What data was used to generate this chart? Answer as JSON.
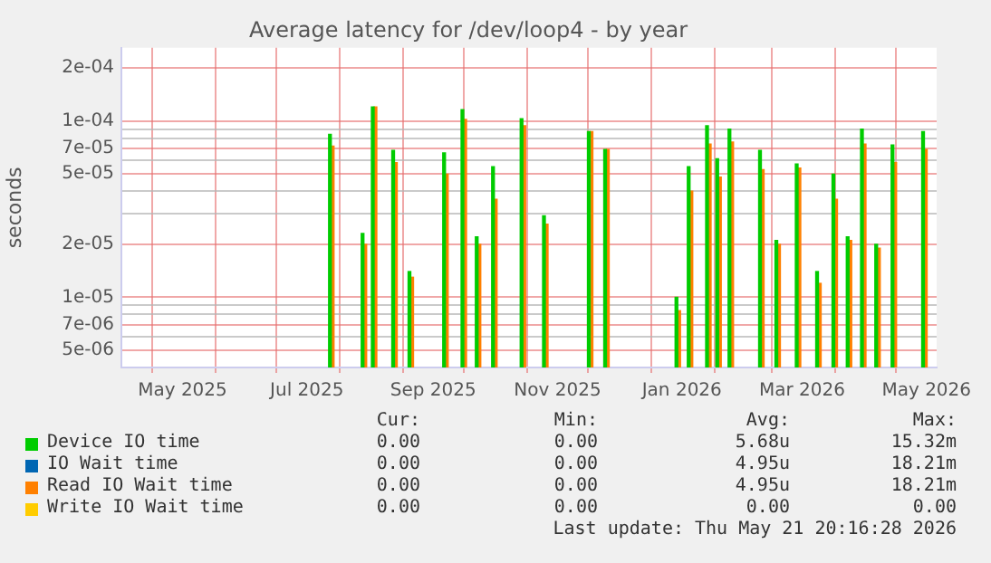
{
  "chart_data": {
    "type": "bar",
    "title": "Average latency for /dev/loop4 - by year",
    "ylabel": "seconds",
    "log": "y",
    "x": [
      "2025-07-28",
      "2025-08-13",
      "2025-08-18",
      "2025-08-28",
      "2025-09-05",
      "2025-09-22",
      "2025-10-01",
      "2025-10-08",
      "2025-10-16",
      "2025-10-30",
      "2025-11-10",
      "2025-12-02",
      "2025-12-10",
      "2026-01-14",
      "2026-01-20",
      "2026-01-29",
      "2026-02-03",
      "2026-02-09",
      "2026-02-24",
      "2026-03-04",
      "2026-03-14",
      "2026-03-24",
      "2026-04-01",
      "2026-04-08",
      "2026-04-15",
      "2026-04-22",
      "2026-04-30",
      "2026-05-15"
    ],
    "series": [
      {
        "name": "Device IO time",
        "color": "#00cc00",
        "values": [
          8.4e-05,
          2.3e-05,
          0.00012,
          6.8e-05,
          1.4e-05,
          6.6e-05,
          0.000116,
          2.2e-05,
          5.5e-05,
          0.000103,
          2.9e-05,
          8.7e-05,
          6.9e-05,
          1e-05,
          5.5e-05,
          9.4e-05,
          6.1e-05,
          9e-05,
          6.8e-05,
          2.1e-05,
          5.7e-05,
          1.4e-05,
          5e-05,
          2.2e-05,
          9e-05,
          2e-05,
          7.3e-05,
          8.7e-05
        ]
      },
      {
        "name": "IO Wait time",
        "color": "#0066b3",
        "values": [
          null,
          null,
          null,
          null,
          null,
          null,
          null,
          null,
          null,
          null,
          null,
          null,
          null,
          null,
          null,
          null,
          null,
          null,
          null,
          null,
          null,
          null,
          null,
          null,
          null,
          null,
          null,
          null
        ]
      },
      {
        "name": "Read IO Wait time",
        "color": "#ff8000",
        "values": [
          7.2e-05,
          2e-05,
          0.00012,
          5.8e-05,
          1.3e-05,
          5e-05,
          0.000102,
          2e-05,
          3.6e-05,
          9.4e-05,
          2.6e-05,
          8.7e-05,
          6.9e-05,
          8.4e-06,
          4e-05,
          7.4e-05,
          4.8e-05,
          7.6e-05,
          5.3e-05,
          2e-05,
          5.4e-05,
          1.2e-05,
          3.6e-05,
          2.1e-05,
          7.4e-05,
          1.9e-05,
          5.8e-05,
          6.9e-05
        ]
      },
      {
        "name": "Write IO Wait time",
        "color": "#ffcc00",
        "values": [
          null,
          null,
          null,
          null,
          null,
          null,
          null,
          null,
          null,
          null,
          null,
          null,
          null,
          null,
          null,
          null,
          null,
          null,
          null,
          null,
          null,
          null,
          null,
          null,
          null,
          null,
          null,
          null
        ]
      }
    ],
    "xlim": [
      "2025-04-16",
      "2026-05-21"
    ],
    "xticks": [
      {
        "value": "2025-05-01",
        "label": null
      },
      {
        "value": "2025-05-16",
        "label": "May 2025"
      },
      {
        "value": "2025-06-01",
        "label": null
      },
      {
        "value": "2025-07-01",
        "label": null
      },
      {
        "value": "2025-07-16",
        "label": "Jul 2025"
      },
      {
        "value": "2025-08-01",
        "label": null
      },
      {
        "value": "2025-09-01",
        "label": null
      },
      {
        "value": "2025-09-16",
        "label": "Sep 2025"
      },
      {
        "value": "2025-10-01",
        "label": null
      },
      {
        "value": "2025-11-01",
        "label": null
      },
      {
        "value": "2025-11-16",
        "label": "Nov 2025"
      },
      {
        "value": "2025-12-01",
        "label": null
      },
      {
        "value": "2026-01-01",
        "label": null
      },
      {
        "value": "2026-01-16",
        "label": "Jan 2026"
      },
      {
        "value": "2026-02-01",
        "label": null
      },
      {
        "value": "2026-03-01",
        "label": null
      },
      {
        "value": "2026-03-16",
        "label": "Mar 2026"
      },
      {
        "value": "2026-04-01",
        "label": null
      },
      {
        "value": "2026-05-01",
        "label": null
      },
      {
        "value": "2026-05-16",
        "label": "May 2026"
      }
    ],
    "ylim": [
      4e-06,
      0.00026
    ],
    "yticks": [
      {
        "value": 4e-06,
        "label": null
      },
      {
        "value": 5e-06,
        "label": "5e-06"
      },
      {
        "value": 6e-06,
        "label": null
      },
      {
        "value": 7e-06,
        "label": "7e-06"
      },
      {
        "value": 8e-06,
        "label": null
      },
      {
        "value": 9e-06,
        "label": null
      },
      {
        "value": 1e-05,
        "label": "1e-05"
      },
      {
        "value": 2e-05,
        "label": "2e-05"
      },
      {
        "value": 3e-05,
        "label": null
      },
      {
        "value": 4e-05,
        "label": null
      },
      {
        "value": 5e-05,
        "label": "5e-05"
      },
      {
        "value": 6e-05,
        "label": null
      },
      {
        "value": 7e-05,
        "label": "7e-05"
      },
      {
        "value": 8e-05,
        "label": null
      },
      {
        "value": 9e-05,
        "label": null
      },
      {
        "value": 0.0001,
        "label": "1e-04"
      },
      {
        "value": 0.0002,
        "label": "2e-04"
      }
    ],
    "grid": true,
    "legend": "bottom",
    "annotations": [
      "Cur:",
      "Min:",
      "Avg:",
      "Max:",
      "0.00",
      "0.00",
      "5.68u",
      "15.32m",
      "0.00",
      "0.00",
      "4.95u",
      "18.21m",
      "0.00",
      "0.00",
      "4.95u",
      "18.21m",
      "0.00",
      "0.00",
      "0.00",
      "0.00",
      "Last update: Thu May 21 20:16:28 2026"
    ]
  }
}
